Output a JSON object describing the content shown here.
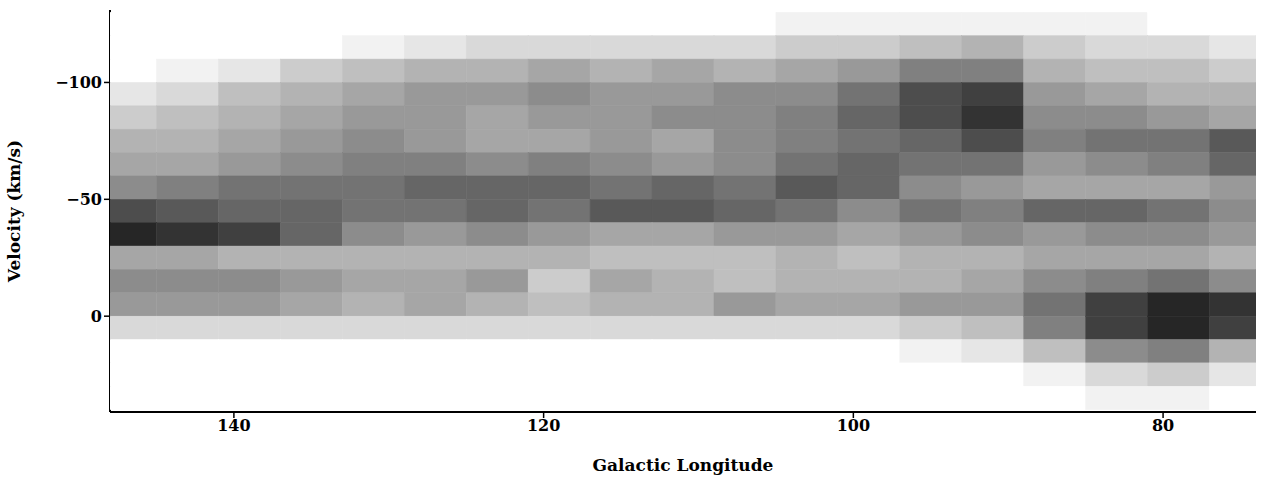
{
  "chart_data": {
    "type": "heatmap",
    "x_label": "Galactic Longitude",
    "y_label": "Velocity (km/s)",
    "color": "#000000",
    "xlim": [
      148,
      74
    ],
    "ylim": [
      41,
      -131
    ],
    "xticks": [
      140,
      120,
      100,
      80
    ],
    "yticks": [
      {
        "value": -100,
        "label": "−100"
      },
      {
        "value": -50,
        "label": "−50"
      },
      0
    ],
    "x": [
      147,
      143,
      139,
      135,
      131,
      127,
      123,
      119,
      115,
      111,
      107,
      103,
      99,
      95,
      91,
      87,
      83,
      79,
      75
    ],
    "y": [
      -125,
      -115,
      -105,
      -95,
      -85,
      -75,
      -65,
      -55,
      -45,
      -35,
      -25,
      -15,
      -5,
      5,
      15,
      25,
      35
    ],
    "z": [
      [
        0,
        0,
        0,
        0,
        0,
        0,
        0,
        0,
        0,
        0,
        0,
        0.05,
        0.05,
        0.05,
        0.05,
        0.05,
        0.05,
        0,
        0
      ],
      [
        0,
        0,
        0,
        0,
        0.05,
        0.1,
        0.15,
        0.15,
        0.15,
        0.15,
        0.15,
        0.2,
        0.2,
        0.25,
        0.3,
        0.2,
        0.15,
        0.15,
        0.1
      ],
      [
        0,
        0.05,
        0.1,
        0.2,
        0.25,
        0.3,
        0.3,
        0.35,
        0.3,
        0.35,
        0.3,
        0.35,
        0.4,
        0.5,
        0.5,
        0.3,
        0.25,
        0.25,
        0.2
      ],
      [
        0.1,
        0.15,
        0.25,
        0.3,
        0.35,
        0.4,
        0.4,
        0.45,
        0.4,
        0.4,
        0.45,
        0.45,
        0.55,
        0.7,
        0.75,
        0.4,
        0.35,
        0.3,
        0.3
      ],
      [
        0.2,
        0.25,
        0.3,
        0.35,
        0.4,
        0.4,
        0.35,
        0.4,
        0.4,
        0.45,
        0.45,
        0.5,
        0.6,
        0.7,
        0.8,
        0.45,
        0.45,
        0.4,
        0.35
      ],
      [
        0.3,
        0.3,
        0.35,
        0.4,
        0.45,
        0.4,
        0.35,
        0.35,
        0.4,
        0.35,
        0.45,
        0.5,
        0.55,
        0.6,
        0.7,
        0.5,
        0.55,
        0.55,
        0.65
      ],
      [
        0.35,
        0.35,
        0.4,
        0.45,
        0.5,
        0.5,
        0.45,
        0.5,
        0.45,
        0.4,
        0.45,
        0.55,
        0.6,
        0.55,
        0.55,
        0.4,
        0.45,
        0.5,
        0.6
      ],
      [
        0.45,
        0.5,
        0.55,
        0.55,
        0.55,
        0.6,
        0.6,
        0.6,
        0.55,
        0.6,
        0.55,
        0.65,
        0.6,
        0.45,
        0.4,
        0.35,
        0.35,
        0.35,
        0.4
      ],
      [
        0.7,
        0.65,
        0.6,
        0.6,
        0.55,
        0.55,
        0.6,
        0.55,
        0.65,
        0.65,
        0.6,
        0.55,
        0.45,
        0.55,
        0.5,
        0.6,
        0.6,
        0.55,
        0.45
      ],
      [
        0.85,
        0.8,
        0.75,
        0.6,
        0.45,
        0.4,
        0.45,
        0.4,
        0.35,
        0.35,
        0.4,
        0.4,
        0.35,
        0.4,
        0.45,
        0.4,
        0.45,
        0.45,
        0.4
      ],
      [
        0.35,
        0.35,
        0.3,
        0.3,
        0.3,
        0.3,
        0.3,
        0.3,
        0.25,
        0.25,
        0.25,
        0.3,
        0.25,
        0.3,
        0.3,
        0.35,
        0.35,
        0.35,
        0.3
      ],
      [
        0.45,
        0.45,
        0.45,
        0.4,
        0.35,
        0.35,
        0.4,
        0.2,
        0.35,
        0.3,
        0.25,
        0.3,
        0.3,
        0.3,
        0.35,
        0.45,
        0.5,
        0.55,
        0.45
      ],
      [
        0.4,
        0.4,
        0.4,
        0.35,
        0.3,
        0.35,
        0.3,
        0.25,
        0.3,
        0.3,
        0.4,
        0.35,
        0.35,
        0.4,
        0.4,
        0.55,
        0.75,
        0.85,
        0.8
      ],
      [
        0.15,
        0.15,
        0.15,
        0.15,
        0.15,
        0.15,
        0.15,
        0.15,
        0.15,
        0.15,
        0.15,
        0.15,
        0.15,
        0.2,
        0.25,
        0.5,
        0.75,
        0.85,
        0.75
      ],
      [
        0,
        0,
        0,
        0,
        0,
        0,
        0,
        0,
        0,
        0,
        0,
        0,
        0,
        0.05,
        0.1,
        0.25,
        0.45,
        0.5,
        0.3
      ],
      [
        0,
        0,
        0,
        0,
        0,
        0,
        0,
        0,
        0,
        0,
        0,
        0,
        0,
        0,
        0,
        0.05,
        0.15,
        0.2,
        0.1
      ],
      [
        0,
        0,
        0,
        0,
        0,
        0,
        0,
        0,
        0,
        0,
        0,
        0,
        0,
        0,
        0,
        0,
        0.05,
        0.05,
        0
      ]
    ]
  }
}
